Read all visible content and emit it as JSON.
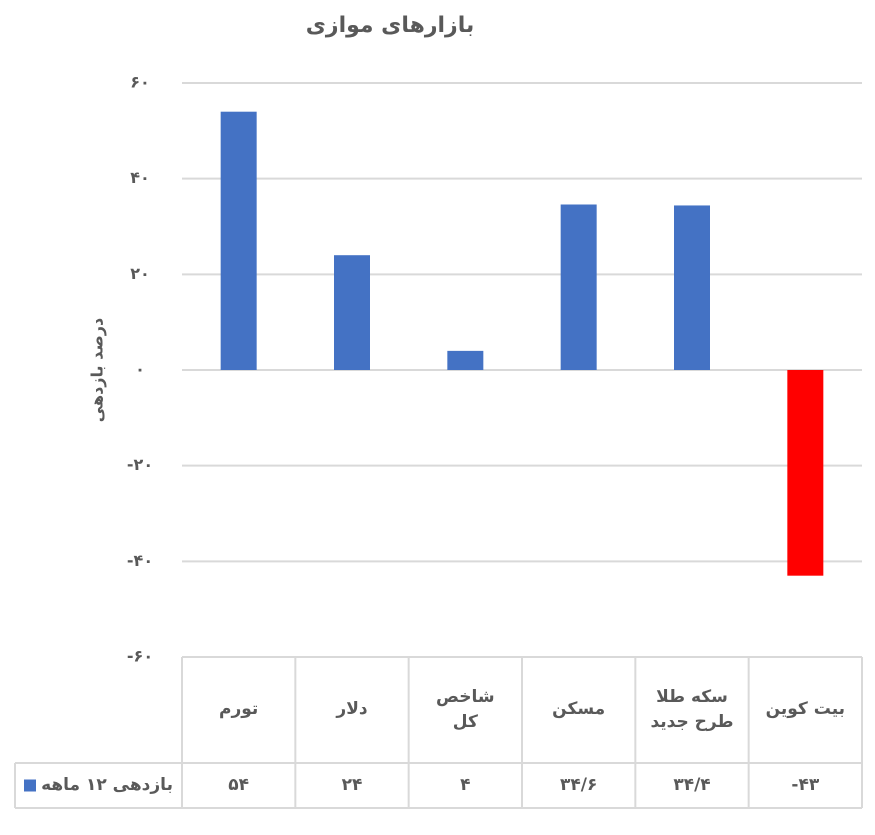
{
  "chart_data": {
    "type": "bar",
    "title": "بازارهای موازی",
    "y_label": "درصد بازدهی",
    "categories": [
      "تورم",
      "دلار",
      "شاخص کل",
      "مسکن",
      "سکه طلا طرح جدید",
      "بیت کوین"
    ],
    "series": [
      {
        "name": "بازدهی ۱۲ ماهه",
        "color": "#4472c4",
        "colors": [
          "#4472c4",
          "#4472c4",
          "#4472c4",
          "#4472c4",
          "#4472c4",
          "#ff0000"
        ],
        "values": [
          54,
          24,
          4,
          34.6,
          34.4,
          -43
        ],
        "value_labels": [
          "۵۴",
          "۲۴",
          "۴",
          "۳۴/۶",
          "۳۴/۴",
          "-۴۳"
        ]
      }
    ],
    "ylim": [
      -60,
      60
    ],
    "yticks": [
      {
        "value": -60,
        "label": "-۶۰"
      },
      {
        "value": -40,
        "label": "-۴۰"
      },
      {
        "value": -20,
        "label": "-۲۰"
      },
      {
        "value": 0,
        "label": "۰"
      },
      {
        "value": 20,
        "label": "۲۰"
      },
      {
        "value": 40,
        "label": "۴۰"
      },
      {
        "value": 60,
        "label": "۶۰"
      }
    ],
    "grid": true
  }
}
